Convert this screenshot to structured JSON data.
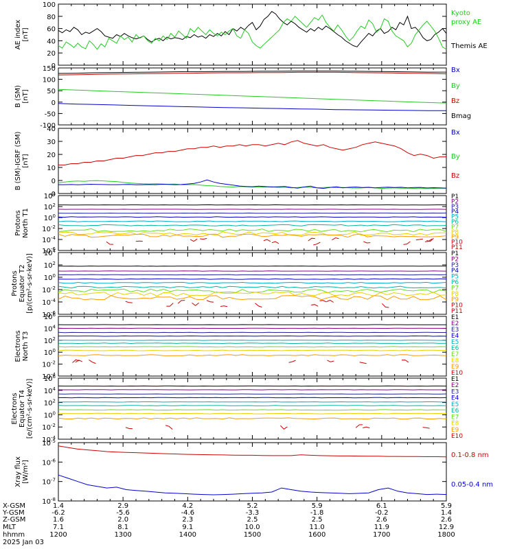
{
  "colors": {
    "black": "#000000",
    "red": "#cc0000",
    "green": "#22cc22",
    "blue": "#0000cc",
    "purple": "#880088",
    "navy": "#2020a0",
    "cyan": "#00aacc",
    "teal": "#00b4a0",
    "lime": "#66dd22",
    "yellow": "#e8d000",
    "orange": "#ff9900"
  },
  "chart_data": [
    {
      "type": "line",
      "ylabel": [
        "AE index",
        "[nT]"
      ],
      "ylim": [
        0,
        100
      ],
      "yticks": [
        "0",
        "20",
        "40",
        "60",
        "80",
        "100"
      ],
      "legend": [
        {
          "label": "Kyoto",
          "color": "green"
        },
        {
          "label": "proxy AE",
          "color": "green"
        },
        {
          "label": "Themis AE",
          "color": "black"
        }
      ],
      "series": [
        {
          "color": "black",
          "values": [
            57,
            53,
            58,
            55,
            62,
            58,
            50,
            54,
            52,
            56,
            60,
            55,
            48,
            46,
            44,
            50,
            47,
            52,
            48,
            45,
            43,
            45,
            48,
            42,
            38,
            42,
            44,
            40,
            46,
            43,
            45,
            44,
            42,
            47,
            45,
            50,
            46,
            48,
            44,
            50,
            47,
            52,
            48,
            55,
            50,
            60,
            56,
            62,
            58,
            65,
            70,
            58,
            64,
            75,
            80,
            88,
            84,
            76,
            70,
            66,
            72,
            68,
            62,
            58,
            54,
            60,
            56,
            62,
            58,
            64,
            60,
            55,
            50,
            46,
            40,
            36,
            32,
            30,
            38,
            45,
            52,
            48,
            56,
            60,
            52,
            55,
            62,
            58,
            70,
            66,
            80,
            60,
            62,
            55,
            45,
            40,
            42,
            50,
            54,
            60,
            52
          ]
        },
        {
          "color": "green",
          "values": [
            32,
            28,
            38,
            34,
            29,
            36,
            30,
            27,
            40,
            34,
            26,
            35,
            30,
            44,
            40,
            36,
            48,
            42,
            46,
            38,
            50,
            44,
            48,
            40,
            36,
            44,
            40,
            48,
            42,
            52,
            46,
            56,
            50,
            44,
            60,
            54,
            62,
            56,
            50,
            58,
            52,
            48,
            54,
            50,
            56,
            60,
            48,
            44,
            58,
            52,
            38,
            32,
            28,
            34,
            40,
            46,
            52,
            58,
            70,
            76,
            72,
            80,
            74,
            68,
            62,
            70,
            78,
            74,
            82,
            70,
            62,
            56,
            66,
            58,
            48,
            40,
            46,
            56,
            64,
            60,
            74,
            68,
            54,
            60,
            76,
            72,
            56,
            48,
            44,
            40,
            30,
            36,
            50,
            58,
            66,
            72,
            64,
            56,
            44,
            30,
            26
          ]
        }
      ]
    },
    {
      "type": "line",
      "ylabel": [
        "B (SM)",
        "[nT]"
      ],
      "ylim": [
        -110,
        150
      ],
      "yticks": [
        "-100",
        "-50",
        "0",
        "50",
        "100",
        "150"
      ],
      "legend": [
        {
          "label": "Bx",
          "color": "blue"
        },
        {
          "label": "By",
          "color": "green"
        },
        {
          "label": "Bz",
          "color": "red"
        },
        {
          "label": "Bmag",
          "color": "black"
        }
      ],
      "series": [
        {
          "color": "black",
          "values": [
            125,
            126,
            128,
            129,
            130,
            131,
            132,
            133,
            133,
            134,
            134,
            135,
            135,
            136,
            136,
            136,
            135,
            134,
            133,
            132,
            131,
            131
          ]
        },
        {
          "color": "red",
          "values": [
            118,
            119,
            121,
            122,
            123,
            124,
            125,
            126,
            127,
            128,
            128,
            129,
            129,
            130,
            130,
            130,
            129,
            128,
            127,
            126,
            125,
            123
          ]
        },
        {
          "color": "green",
          "values": [
            52,
            49,
            46,
            43,
            40,
            37,
            34,
            31,
            28,
            25,
            22,
            19,
            16,
            13,
            10,
            7,
            4,
            1,
            -2,
            -5,
            -8,
            -10
          ]
        },
        {
          "color": "blue",
          "values": [
            -12,
            -15,
            -17,
            -19,
            -21,
            -23,
            -25,
            -27,
            -29,
            -31,
            -32,
            -34,
            -35,
            -37,
            -38,
            -40,
            -41,
            -42,
            -43,
            -44,
            -45,
            -45
          ]
        }
      ]
    },
    {
      "type": "line",
      "ylabel": [
        "B (SM)-IGRF (SM)",
        "[nT]"
      ],
      "ylim": [
        -6,
        42
      ],
      "yticks": [
        "-0",
        "0",
        "10",
        "20",
        "30",
        "40"
      ],
      "legend": [
        {
          "label": "Bx",
          "color": "blue"
        },
        {
          "label": "By",
          "color": "green"
        },
        {
          "label": "Bz",
          "color": "red"
        }
      ],
      "series": [
        {
          "color": "red",
          "values": [
            15,
            15,
            16,
            16,
            17,
            17,
            18,
            18,
            19,
            20,
            20,
            21,
            22,
            22,
            23,
            24,
            24,
            25,
            25,
            26,
            27,
            27,
            28,
            28,
            29,
            28,
            29,
            29,
            30,
            29,
            30,
            30,
            29,
            30,
            31,
            30,
            32,
            33,
            31,
            30,
            29,
            30,
            28,
            27,
            26,
            27,
            28,
            30,
            31,
            32,
            31,
            30,
            29,
            27,
            24,
            22,
            23,
            22,
            20,
            21,
            21
          ]
        },
        {
          "color": "green",
          "values": [
            2,
            2.5,
            3,
            3.2,
            3,
            3.4,
            3.5,
            3.3,
            3,
            2.8,
            2.2,
            1.8,
            1.5,
            1.2,
            1,
            1.2,
            1,
            0.8,
            1,
            0.5,
            0.4,
            0.6,
            0.2,
            -0.2,
            -0.4,
            -0.8,
            -1,
            -1.2,
            -0.8,
            -1,
            -1.2,
            -1.4,
            -1.2,
            -1,
            -1.5,
            -1.3,
            -1.8,
            -1.6,
            -1.2,
            -1.5,
            -1.8,
            -1.6,
            -1.4,
            -1.7,
            -1.5,
            -1.8,
            -2,
            -1.8,
            -1.6,
            -1.9,
            -2.2,
            -2,
            -1.8,
            -2.1,
            -2,
            -2.2,
            -2,
            -2.4,
            -2.2,
            -2.1,
            -2.2
          ]
        },
        {
          "color": "blue",
          "values": [
            0.5,
            0.5,
            0.6,
            0.4,
            0.6,
            0.8,
            0.7,
            0.6,
            0.5,
            0.5,
            0.6,
            0.7,
            0.4,
            0.5,
            0.6,
            0.5,
            0.8,
            0.7,
            0.5,
            0.6,
            1,
            1.5,
            2.5,
            4,
            2.5,
            1.5,
            0.8,
            0.2,
            -0.5,
            -0.8,
            -1,
            -0.6,
            -0.9,
            -1.2,
            -1,
            -0.8,
            -1.5,
            -2,
            -1.2,
            -0.6,
            -1.8,
            -2.2,
            -1.5,
            -1,
            -1.8,
            -1.4,
            -1.2,
            -1.6,
            -1.4,
            -1.8,
            -1.5,
            -1.3,
            -1.6,
            -1.4,
            -1.8,
            -1.6,
            -1.5,
            -1.9,
            -1.7,
            -1.8,
            -2
          ]
        }
      ]
    },
    {
      "type": "line",
      "logscale": true,
      "ylabel": [
        "Protons",
        "North T1"
      ],
      "ylim": [
        -6,
        4
      ],
      "yticks": [
        "10^-6",
        "10^-4",
        "10^-2",
        "10^0",
        "10^2",
        "10^4"
      ],
      "legend": [
        {
          "label": "P1",
          "color": "black"
        },
        {
          "label": "P2",
          "color": "purple"
        },
        {
          "label": "P3",
          "color": "navy"
        },
        {
          "label": "P4",
          "color": "blue"
        },
        {
          "label": "P5",
          "color": "cyan"
        },
        {
          "label": "P6",
          "color": "teal"
        },
        {
          "label": "P7",
          "color": "lime"
        },
        {
          "label": "P8",
          "color": "yellow"
        },
        {
          "label": "P9",
          "color": "orange"
        },
        {
          "label": "P10",
          "color": "red"
        },
        {
          "label": "P11",
          "color": "red"
        }
      ],
      "levels": [
        2.3,
        1.5,
        0.8,
        0.1,
        -0.7,
        -1.4,
        -2.3,
        -2.9,
        -3.3,
        -4.0,
        -4.6
      ],
      "noise": [
        0.02,
        0.02,
        0.03,
        0.05,
        0.08,
        0.12,
        0.3,
        0.3,
        0.3,
        0,
        0
      ]
    },
    {
      "type": "line",
      "logscale": true,
      "ylabel": [
        "Protons",
        "Equator T2",
        "[p/(cm²-s-sr-keV)]"
      ],
      "ylim": [
        -6,
        4
      ],
      "yticks": [
        "10^-6",
        "10^-4",
        "10^-2",
        "10^0",
        "10^2",
        "10^4"
      ],
      "legend": [
        {
          "label": "P1",
          "color": "black"
        },
        {
          "label": "P2",
          "color": "purple"
        },
        {
          "label": "P3",
          "color": "navy"
        },
        {
          "label": "P4",
          "color": "blue"
        },
        {
          "label": "P5",
          "color": "cyan"
        },
        {
          "label": "P6",
          "color": "teal"
        },
        {
          "label": "P7",
          "color": "lime"
        },
        {
          "label": "P8",
          "color": "yellow"
        },
        {
          "label": "P9",
          "color": "orange"
        },
        {
          "label": "P10",
          "color": "red"
        },
        {
          "label": "P11",
          "color": "red"
        }
      ],
      "levels": [
        1.8,
        1.0,
        0.4,
        -0.3,
        -0.9,
        -1.6,
        -2.2,
        -2.7,
        -3.3,
        -3.9,
        -4.5
      ],
      "noise": [
        0.02,
        0.02,
        0.03,
        0.05,
        0.08,
        0.15,
        0.3,
        0.35,
        0.35,
        0,
        0
      ]
    },
    {
      "type": "line",
      "logscale": true,
      "ylabel": [
        "Electrons",
        "North T3"
      ],
      "ylim": [
        -4,
        6
      ],
      "yticks": [
        "10^-4",
        "10^-2",
        "10^0",
        "10^2",
        "10^4",
        "10^6"
      ],
      "legend": [
        {
          "label": "E1",
          "color": "black"
        },
        {
          "label": "E2",
          "color": "purple"
        },
        {
          "label": "E3",
          "color": "navy"
        },
        {
          "label": "E4",
          "color": "blue"
        },
        {
          "label": "E5",
          "color": "cyan"
        },
        {
          "label": "E6",
          "color": "teal"
        },
        {
          "label": "E7",
          "color": "lime"
        },
        {
          "label": "E8",
          "color": "yellow"
        },
        {
          "label": "E9",
          "color": "orange"
        },
        {
          "label": "E10",
          "color": "red"
        }
      ],
      "levels": [
        4.6,
        4.0,
        3.3,
        2.7,
        2.0,
        1.5,
        0.9,
        0.3,
        -0.5,
        -1.5
      ],
      "noise": [
        0.02,
        0.02,
        0.02,
        0.03,
        0.03,
        0.04,
        0.05,
        0.06,
        0.1,
        0
      ]
    },
    {
      "type": "line",
      "logscale": true,
      "ylabel": [
        "Electrons",
        "Equator T4",
        "[e/(cm²-s-sr-keV)]"
      ],
      "ylim": [
        -4,
        6
      ],
      "yticks": [
        "10^-4",
        "10^-2",
        "10^0",
        "10^2",
        "10^4",
        "10^6"
      ],
      "legend": [
        {
          "label": "E1",
          "color": "black"
        },
        {
          "label": "E2",
          "color": "purple"
        },
        {
          "label": "E3",
          "color": "navy"
        },
        {
          "label": "E4",
          "color": "blue"
        },
        {
          "label": "E5",
          "color": "cyan"
        },
        {
          "label": "E6",
          "color": "teal"
        },
        {
          "label": "E7",
          "color": "lime"
        },
        {
          "label": "E8",
          "color": "yellow"
        },
        {
          "label": "E9",
          "color": "orange"
        },
        {
          "label": "E10",
          "color": "red"
        }
      ],
      "levels": [
        4.7,
        4.1,
        3.4,
        2.8,
        2.1,
        1.5,
        0.8,
        0.2,
        -0.6,
        -2.0
      ],
      "noise": [
        0.02,
        0.02,
        0.02,
        0.03,
        0.03,
        0.04,
        0.05,
        0.06,
        0.1,
        0
      ]
    },
    {
      "type": "line",
      "logscale": true,
      "ylabel": [
        "Xray flux",
        "[W/m²]"
      ],
      "ylim": [
        -8.3,
        -4.7
      ],
      "yticks": [
        "10^-8",
        "10^-7",
        "10^-6",
        "10^-5"
      ],
      "legend": [
        {
          "label": "0.1-0.8 nm",
          "color": "red"
        },
        {
          "label": "0.05-0.4 nm",
          "color": "blue"
        }
      ],
      "series": [
        {
          "color": "red",
          "values": [
            -4.9,
            -5.0,
            -5.1,
            -5.15,
            -5.2,
            -5.25,
            -5.28,
            -5.3,
            -5.32,
            -5.34,
            -5.36,
            -5.38,
            -5.4,
            -5.42,
            -5.43,
            -5.44,
            -5.45,
            -5.46,
            -5.47,
            -5.48,
            -5.48,
            -5.49,
            -5.5,
            -5.5,
            -5.5,
            -5.45,
            -5.48,
            -5.5,
            -5.51,
            -5.52,
            -5.52,
            -5.53,
            -5.54,
            -5.54,
            -5.55,
            -5.55,
            -5.56,
            -5.56,
            -5.57,
            -5.57,
            -5.58
          ]
        },
        {
          "color": "blue",
          "values": [
            -6.7,
            -6.9,
            -7.1,
            -7.3,
            -7.4,
            -7.5,
            -7.45,
            -7.6,
            -7.65,
            -7.7,
            -7.75,
            -7.8,
            -7.82,
            -7.85,
            -7.88,
            -7.9,
            -7.92,
            -7.9,
            -7.88,
            -7.85,
            -7.82,
            -7.8,
            -7.75,
            -7.5,
            -7.6,
            -7.7,
            -7.75,
            -7.78,
            -7.8,
            -7.82,
            -7.85,
            -7.83,
            -7.8,
            -7.6,
            -7.5,
            -7.7,
            -7.8,
            -7.85,
            -7.9,
            -7.88,
            -7.9
          ]
        }
      ]
    }
  ],
  "xaxis": {
    "row_labels": [
      "X-GSM",
      "Y-GSM",
      "Z-GSM",
      "MLT",
      "hhmm",
      "2025 Jan 03"
    ],
    "columns": [
      [
        "1.4",
        "-6.2",
        "1.6",
        "7.1",
        "1200"
      ],
      [
        "2.9",
        "-5.6",
        "2.0",
        "8.1",
        "1300"
      ],
      [
        "4.2",
        "-4.6",
        "2.3",
        "9.1",
        "1400"
      ],
      [
        "5.2",
        "-3.3",
        "2.5",
        "10.0",
        "1500"
      ],
      [
        "5.9",
        "-1.8",
        "2.5",
        "11.0",
        "1600"
      ],
      [
        "6.1",
        "-0.2",
        "2.6",
        "11.9",
        "1700"
      ],
      [
        "5.9",
        "1.4",
        "2.6",
        "12.9",
        "1800"
      ]
    ]
  }
}
